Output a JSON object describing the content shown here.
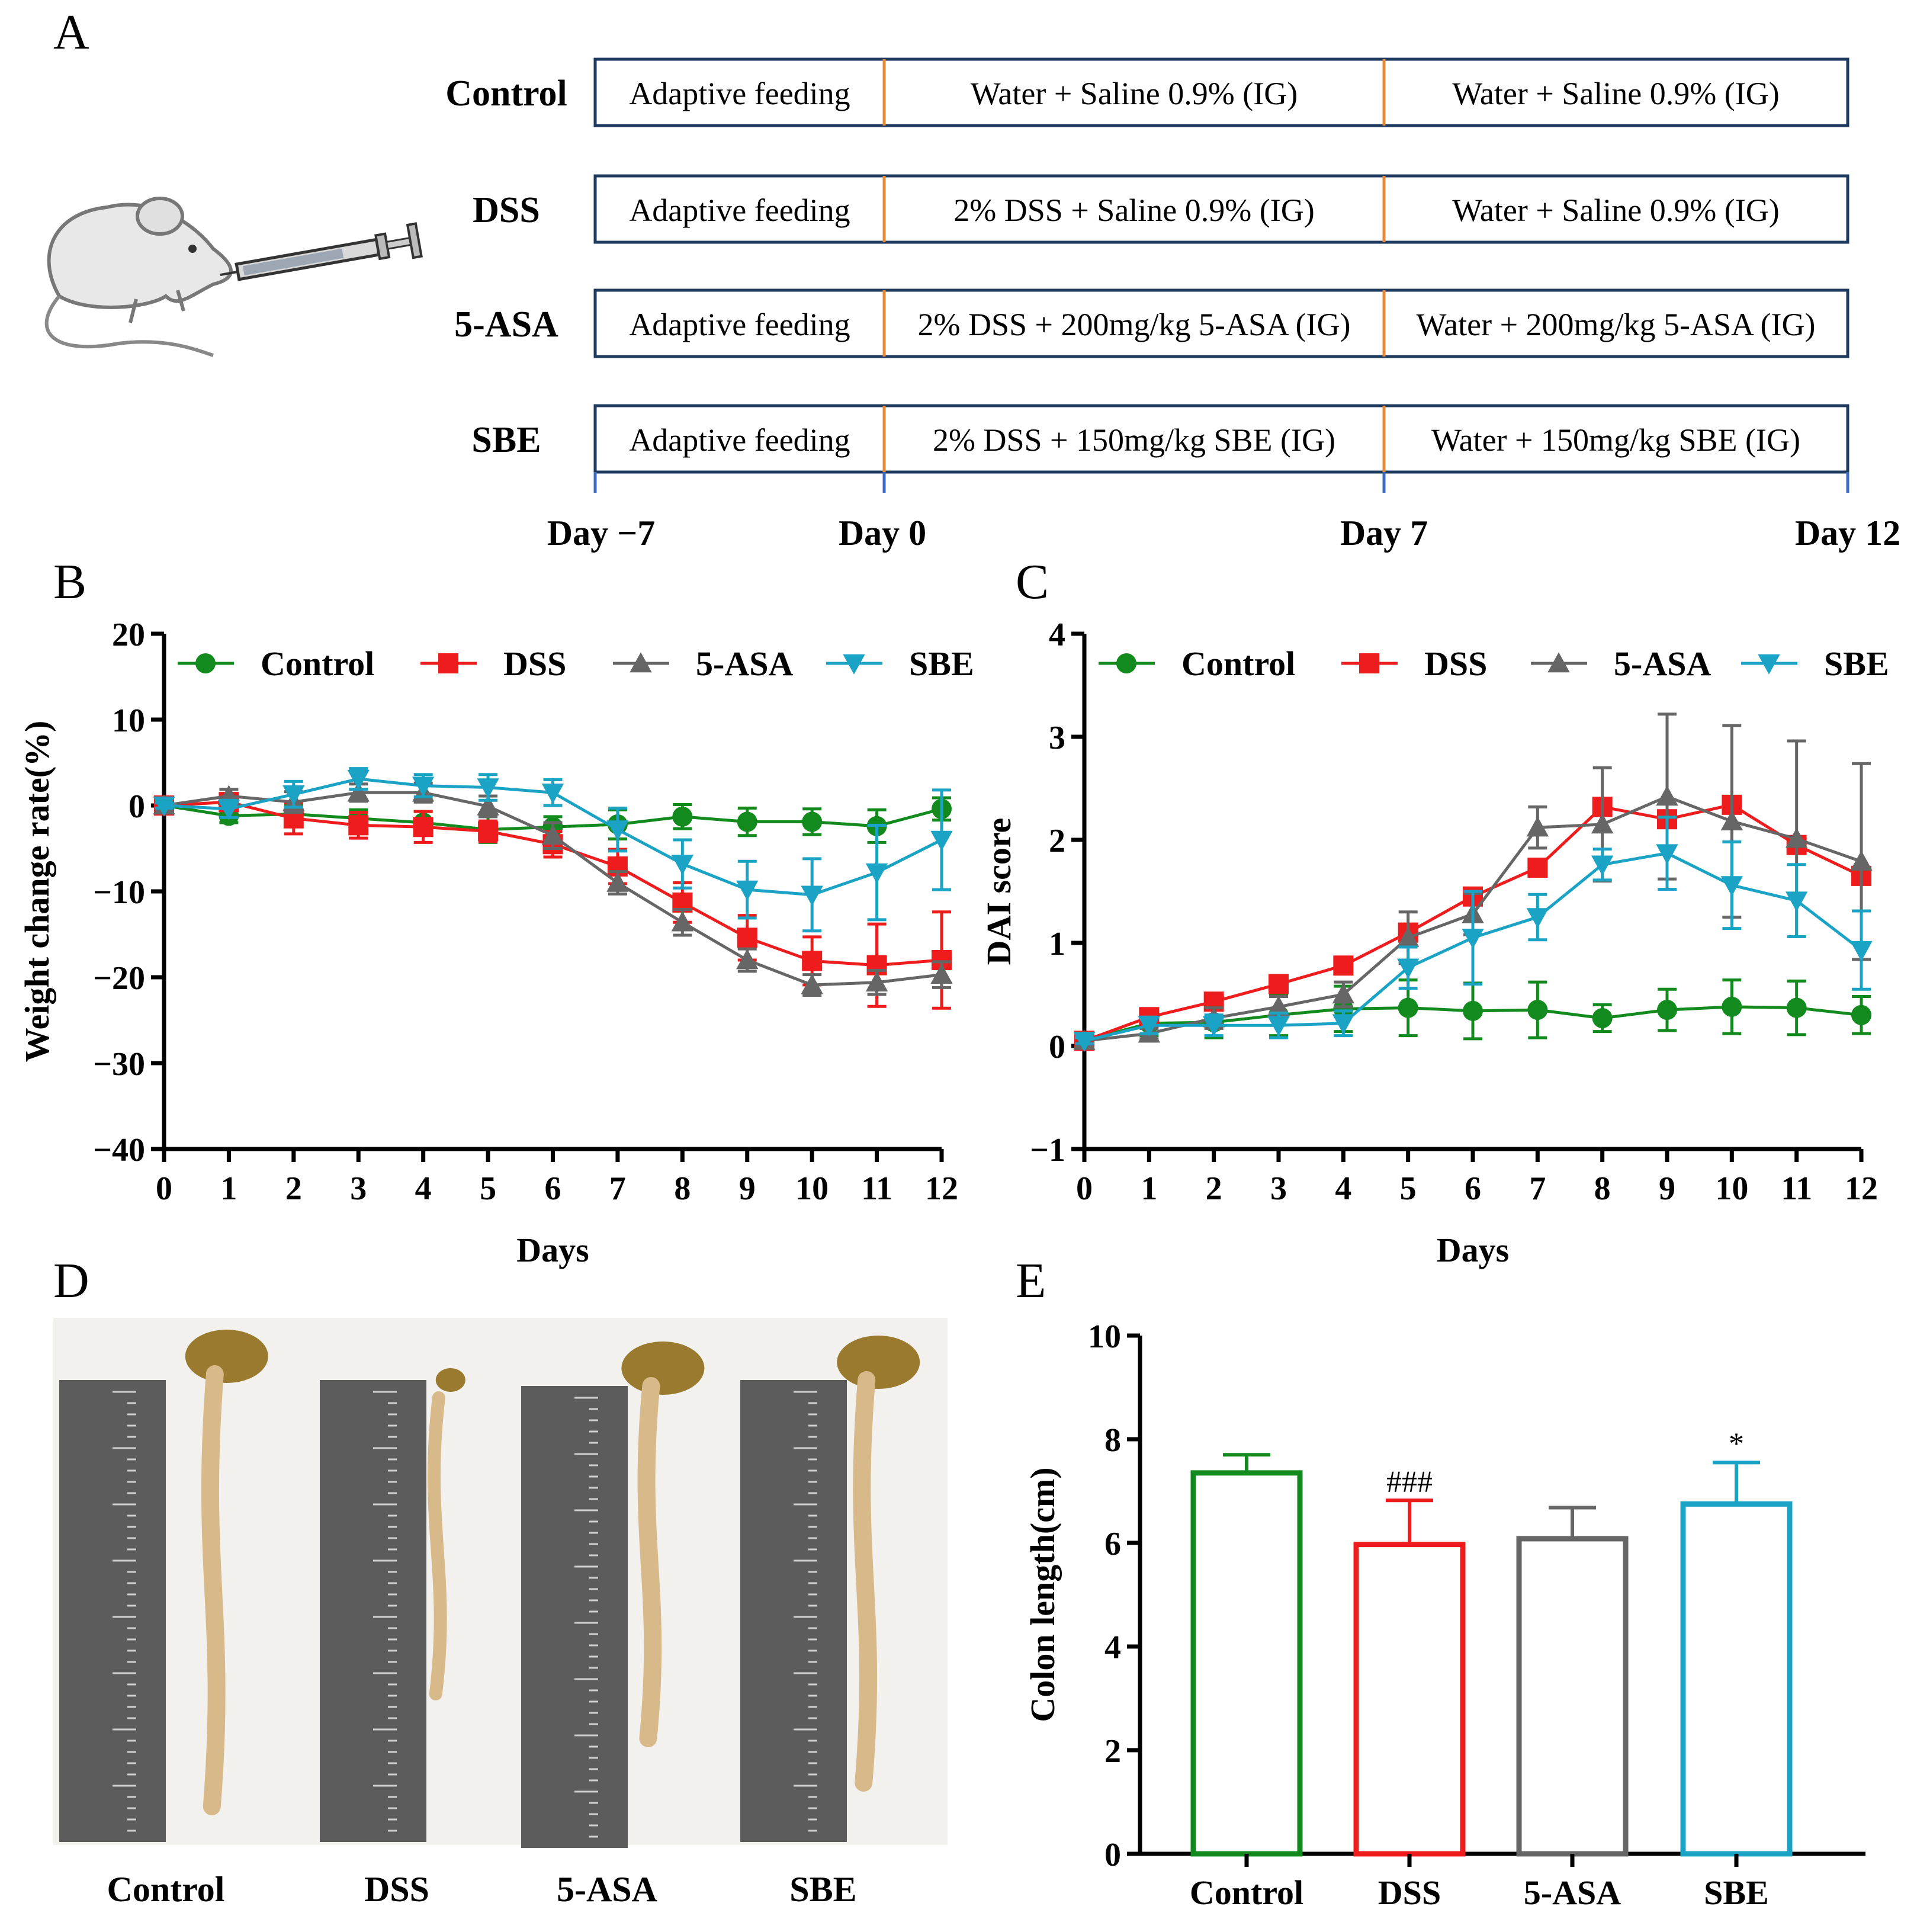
{
  "panels": {
    "A": {
      "letter": "A",
      "groups": [
        {
          "label": "Control",
          "phases": [
            "Adaptive feeding",
            "Water + Saline 0.9% (IG)",
            "Water + Saline 0.9% (IG)"
          ]
        },
        {
          "label": "DSS",
          "phases": [
            "Adaptive feeding",
            "2% DSS + Saline 0.9% (IG)",
            "Water + Saline 0.9% (IG)"
          ]
        },
        {
          "label": "5-ASA",
          "phases": [
            "Adaptive feeding",
            "2% DSS + 200mg/kg 5-ASA (IG)",
            "Water + 200mg/kg 5-ASA (IG)"
          ]
        },
        {
          "label": "SBE",
          "phases": [
            "Adaptive feeding",
            "2% DSS + 150mg/kg SBE (IG)",
            "Water + 150mg/kg SBE (IG)"
          ]
        }
      ],
      "day_labels": [
        "Day −7",
        "Day 0",
        "Day 7",
        "Day 12"
      ],
      "illustration": "mouse-with-syringe",
      "colors": {
        "box_border": "#1f3a5f",
        "divider": "#e8893a",
        "tick": "#3d6bbf"
      }
    },
    "D": {
      "letter": "D",
      "photo_labels": [
        "Control",
        "DSS",
        "5-ASA",
        "SBE"
      ],
      "photo_description_icons": [
        "ruler-icon",
        "colon-icon"
      ]
    }
  },
  "series_colors": {
    "Control": "#128a1e",
    "DSS": "#ee1c1c",
    "5-ASA": "#666666",
    "SBE": "#1ba3c6"
  },
  "chart_data": [
    {
      "panel": "B",
      "type": "line",
      "xlabel": "Days",
      "ylabel": "Weight change rate(%)",
      "x": [
        0,
        1,
        2,
        3,
        4,
        5,
        6,
        7,
        8,
        9,
        10,
        11,
        12
      ],
      "xlim": [
        0,
        12
      ],
      "ylim": [
        -40,
        20
      ],
      "yticks": [
        20,
        10,
        0,
        -10,
        -20,
        -30,
        -40
      ],
      "ytick_labels": [
        "20",
        "10",
        "0",
        "−10",
        "−20",
        "−30",
        "−40"
      ],
      "xtick_labels": [
        "0",
        "1",
        "2",
        "3",
        "4",
        "5",
        "6",
        "7",
        "8",
        "9",
        "10",
        "11",
        "12"
      ],
      "legend_position": "top",
      "series": [
        {
          "name": "Control",
          "marker": "circle",
          "values": [
            0,
            -1.2,
            -1.0,
            -1.5,
            -2.0,
            -2.8,
            -2.5,
            -2.2,
            -1.3,
            -1.9,
            -1.9,
            -2.4,
            -0.4
          ],
          "errors": [
            0.3,
            0.8,
            1.0,
            1.0,
            1.3,
            1.5,
            1.2,
            1.7,
            1.4,
            1.6,
            1.5,
            1.9,
            1.3
          ]
        },
        {
          "name": "DSS",
          "marker": "square",
          "values": [
            0,
            0.4,
            -1.5,
            -2.3,
            -2.5,
            -3.0,
            -4.5,
            -7.1,
            -11.3,
            -15.4,
            -18.1,
            -18.6,
            -18.0
          ],
          "errors": [
            0.3,
            1.0,
            1.8,
            1.5,
            1.8,
            1.2,
            1.5,
            2.0,
            2.3,
            2.6,
            2.8,
            4.8,
            5.6
          ]
        },
        {
          "name": "5-ASA",
          "marker": "triangle-up",
          "values": [
            0,
            1.1,
            0.4,
            1.5,
            1.5,
            -0.1,
            -3.5,
            -9.0,
            -13.6,
            -18.0,
            -20.9,
            -20.6,
            -19.7
          ],
          "errors": [
            0.3,
            0.8,
            1.2,
            1.0,
            1.1,
            1.2,
            1.5,
            1.3,
            1.5,
            1.3,
            1.2,
            1.4,
            1.5
          ]
        },
        {
          "name": "SBE",
          "marker": "triangle-down",
          "values": [
            0,
            -0.4,
            1.3,
            3.1,
            2.3,
            2.1,
            1.5,
            -2.8,
            -6.8,
            -9.8,
            -10.4,
            -7.8,
            -4.0
          ],
          "errors": [
            0.3,
            1.0,
            1.5,
            1.2,
            1.3,
            1.5,
            1.5,
            2.5,
            2.8,
            3.3,
            4.2,
            5.5,
            5.8
          ]
        }
      ]
    },
    {
      "panel": "C",
      "type": "line",
      "xlabel": "Days",
      "ylabel": "DAI score",
      "x": [
        0,
        1,
        2,
        3,
        4,
        5,
        6,
        7,
        8,
        9,
        10,
        11,
        12
      ],
      "xlim": [
        0,
        12
      ],
      "ylim": [
        -1,
        4
      ],
      "yticks": [
        4,
        3,
        2,
        1,
        0,
        -1
      ],
      "ytick_labels": [
        "4",
        "3",
        "2",
        "1",
        "0",
        "−1"
      ],
      "xtick_labels": [
        "0",
        "1",
        "2",
        "3",
        "4",
        "5",
        "6",
        "7",
        "8",
        "9",
        "10",
        "11",
        "12"
      ],
      "legend_position": "top",
      "series": [
        {
          "name": "Control",
          "marker": "circle",
          "values": [
            0.05,
            0.22,
            0.23,
            0.3,
            0.36,
            0.37,
            0.34,
            0.35,
            0.27,
            0.35,
            0.38,
            0.37,
            0.3
          ],
          "errors": [
            0.03,
            0.12,
            0.15,
            0.2,
            0.22,
            0.27,
            0.27,
            0.27,
            0.13,
            0.2,
            0.26,
            0.26,
            0.18
          ]
        },
        {
          "name": "DSS",
          "marker": "square",
          "values": [
            0.05,
            0.28,
            0.43,
            0.6,
            0.78,
            1.1,
            1.45,
            1.73,
            2.32,
            2.2,
            2.34,
            1.95,
            1.65
          ]
        },
        {
          "name": "5-ASA",
          "marker": "triangle-up",
          "values": [
            0.05,
            0.12,
            0.27,
            0.38,
            0.5,
            1.05,
            1.28,
            2.12,
            2.15,
            2.42,
            2.18,
            2.01,
            1.79
          ],
          "errors": [
            0.03,
            0.05,
            0.1,
            0.1,
            0.12,
            0.25,
            0.2,
            0.2,
            0.55,
            0.8,
            0.93,
            0.95,
            0.95
          ]
        },
        {
          "name": "SBE",
          "marker": "triangle-down",
          "values": [
            0.05,
            0.2,
            0.2,
            0.2,
            0.22,
            0.76,
            1.05,
            1.25,
            1.76,
            1.87,
            1.56,
            1.41,
            0.93
          ],
          "errors": [
            0.03,
            0.08,
            0.1,
            0.12,
            0.12,
            0.2,
            0.45,
            0.22,
            0.15,
            0.35,
            0.42,
            0.35,
            0.38
          ]
        }
      ]
    },
    {
      "panel": "E",
      "type": "bar",
      "xlabel": "",
      "ylabel": "Colon length(cm)",
      "categories": [
        "Control",
        "DSS",
        "5-ASA",
        "SBE"
      ],
      "values": [
        7.35,
        5.97,
        6.08,
        6.75
      ],
      "errors": [
        0.35,
        0.85,
        0.6,
        0.8
      ],
      "annotations": [
        "",
        "###",
        "",
        "*"
      ],
      "ylim": [
        0,
        10
      ],
      "yticks": [
        0,
        2,
        4,
        6,
        8,
        10
      ],
      "ytick_labels": [
        "0",
        "2",
        "4",
        "6",
        "8",
        "10"
      ]
    }
  ]
}
